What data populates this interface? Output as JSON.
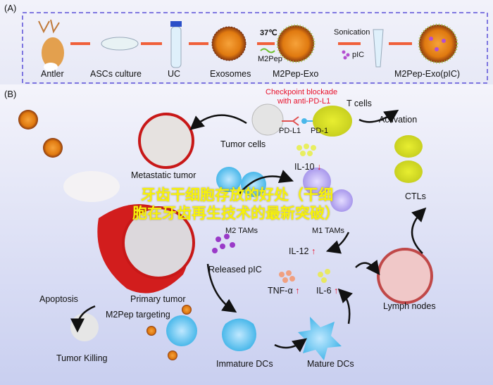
{
  "panel_a": {
    "label": "(A)",
    "steps": [
      "Antler",
      "ASCs culture",
      "UC",
      "Exosomes",
      "M2Pep-Exo",
      "M2Pep-Exo(pIC)"
    ],
    "temperature": "37℃",
    "peptide": "M2Pep",
    "sonication": "Sonication",
    "pic": "pIC"
  },
  "panel_b": {
    "label": "(B)",
    "checkpoint": "Checkpoint blockade",
    "checkpoint_2": "with anti-PD-L1",
    "t_cells": "T cells",
    "pd_l1": "PD-L1",
    "pd_1": "PD-1",
    "tumor_cells": "Tumor cells",
    "activation": "Activation",
    "metastatic_tumor": "Metastatic tumor",
    "il10": "IL-10",
    "m2_tams": "M2 TAMs",
    "m1_tams": "M1 TAMs",
    "ctls": "CTLs",
    "il12": "IL-12",
    "released_pic": "Released pIC",
    "tnf": "TNF-α",
    "il6": "IL-6",
    "lymph_nodes": "Lymph nodes",
    "apoptosis": "Apoptosis",
    "primary_tumor": "Primary tumor",
    "m2pep_targeting": "M2Pep targeting",
    "tumor_killing": "Tumor Killing",
    "immature_dcs": "Immature DCs",
    "mature_dcs": "Mature DCs",
    "down_arrow": "↓",
    "up_arrow": "↑"
  },
  "watermark": {
    "line1": "牙齿干细胞存放的好处（干细",
    "line2": "胞在牙齿再生技术的最新突破）"
  },
  "colors": {
    "dashed_border": "#5a4fd8",
    "arrow": "#f0603a",
    "red_text": "#e8102a",
    "watermark": "#f7f20a"
  }
}
